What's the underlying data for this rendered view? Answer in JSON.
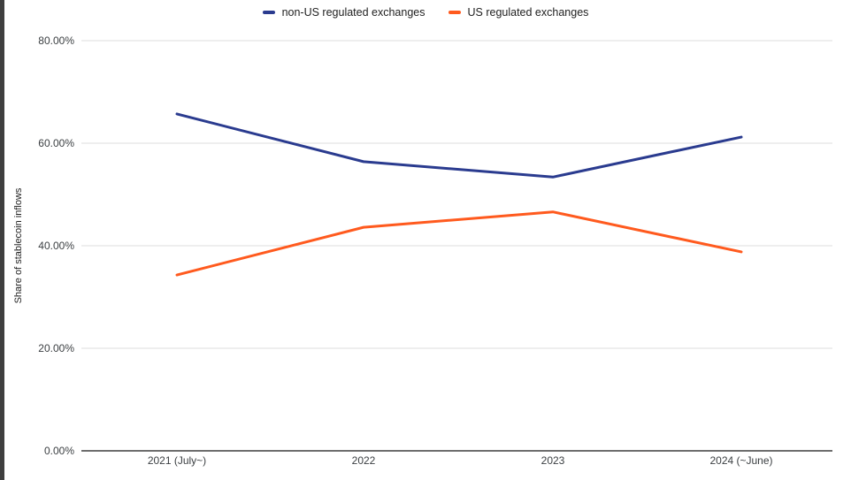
{
  "window": {
    "left_border_color": "#3f3f3f"
  },
  "chart_data": {
    "type": "line",
    "title": "",
    "ylabel": "Share of stablecoin inflows",
    "xlabel": "",
    "x_categories": [
      "2021 (July~)",
      "2022",
      "2023",
      "2024 (~June)"
    ],
    "series": [
      {
        "name": "non-US regulated exchanges",
        "color": "#2a3b8f",
        "values": [
          65.7,
          56.4,
          53.4,
          61.2
        ]
      },
      {
        "name": "US regulated exchanges",
        "color": "#ff5a1e",
        "values": [
          34.3,
          43.6,
          46.6,
          38.8
        ]
      }
    ],
    "ylim": [
      0,
      80
    ],
    "yticks": [
      0,
      20,
      40,
      60,
      80
    ],
    "ytick_labels": [
      "0.00%",
      "20.00%",
      "40.00%",
      "60.00%",
      "80.00%"
    ],
    "grid": "horizontal",
    "legend_position": "top",
    "gridline_color": "#dcdcdc",
    "axis_line_color": "#6e6e6e"
  }
}
